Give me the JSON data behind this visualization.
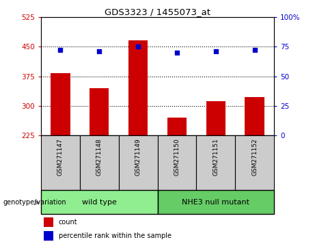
{
  "title": "GDS3323 / 1455073_at",
  "samples": [
    "GSM271147",
    "GSM271148",
    "GSM271149",
    "GSM271150",
    "GSM271151",
    "GSM271152"
  ],
  "bar_values": [
    383,
    345,
    465,
    270,
    312,
    322
  ],
  "bar_baseline": 225,
  "percentile_values": [
    72,
    71,
    75,
    70,
    71,
    72
  ],
  "bar_color": "#cc0000",
  "dot_color": "#0000cc",
  "ylim_left": [
    225,
    525
  ],
  "ylim_right": [
    0,
    100
  ],
  "yticks_left": [
    225,
    300,
    375,
    450,
    525
  ],
  "yticks_right": [
    0,
    25,
    50,
    75,
    100
  ],
  "ytick_labels_left": [
    "225",
    "300",
    "375",
    "450",
    "525"
  ],
  "ytick_labels_right": [
    "0",
    "25",
    "50",
    "75",
    "100%"
  ],
  "hlines": [
    300,
    375,
    450
  ],
  "groups": [
    {
      "label": "wild type",
      "indices": [
        0,
        1,
        2
      ],
      "color": "#90ee90"
    },
    {
      "label": "NHE3 null mutant",
      "indices": [
        3,
        4,
        5
      ],
      "color": "#66cc66"
    }
  ],
  "group_row_label": "genotype/variation",
  "legend_items": [
    {
      "label": "count",
      "color": "#cc0000"
    },
    {
      "label": "percentile rank within the sample",
      "color": "#0000cc"
    }
  ],
  "tick_label_color_left": "#cc0000",
  "tick_label_color_right": "#0000cc",
  "background_color": "#ffffff",
  "plot_bg_color": "#ffffff",
  "sample_row_bg": "#cccccc",
  "bar_width": 0.5
}
